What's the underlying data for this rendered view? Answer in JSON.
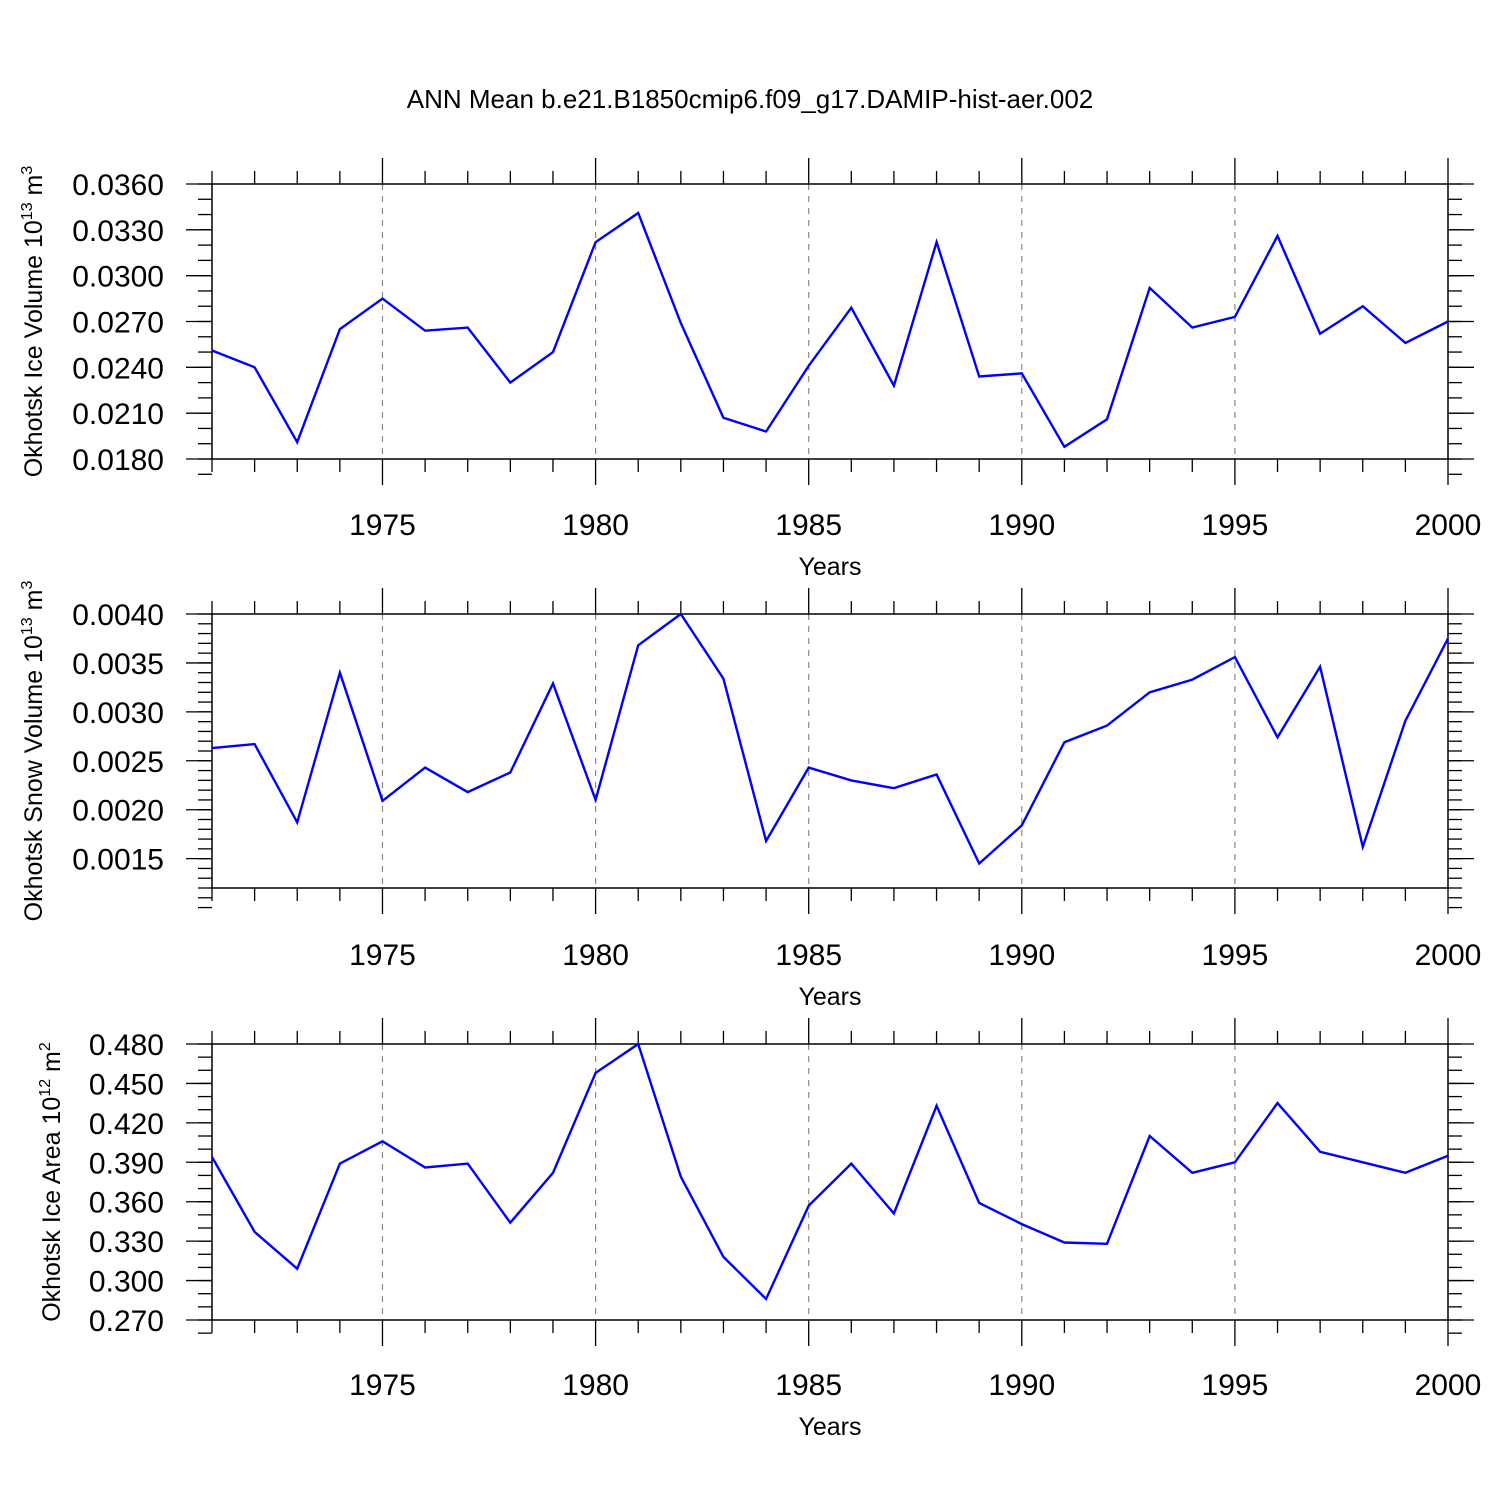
{
  "figure": {
    "title": "ANN Mean b.e21.B1850cmip6.f09_g17.DAMIP-hist-aer.002"
  },
  "chart_data": [
    {
      "type": "line",
      "title": "",
      "xlabel": "Years",
      "ylabel": {
        "text": "Okhotsk Ice Volume 10",
        "exp": "13",
        "unit": " m",
        "unit_exp": "3"
      },
      "xlim": [
        1971,
        2000
      ],
      "ylim": [
        0.018,
        0.036
      ],
      "x_ticks": [
        1975,
        1980,
        1985,
        1990,
        1995,
        2000
      ],
      "y_ticks": [
        "0.0180",
        "0.0210",
        "0.0240",
        "0.0270",
        "0.0300",
        "0.0330",
        "0.0360"
      ],
      "y_minor_step": 0.001,
      "grid": "x-major-dashed",
      "color": "#0000ff",
      "x": [
        1971,
        1972,
        1973,
        1974,
        1975,
        1976,
        1977,
        1978,
        1979,
        1980,
        1981,
        1982,
        1983,
        1984,
        1985,
        1986,
        1987,
        1988,
        1989,
        1990,
        1991,
        1992,
        1993,
        1994,
        1995,
        1996,
        1997,
        1998,
        1999,
        2000
      ],
      "values": [
        0.0251,
        0.024,
        0.0191,
        0.0265,
        0.0285,
        0.0264,
        0.0266,
        0.023,
        0.025,
        0.0322,
        0.0341,
        0.0269,
        0.0207,
        0.0198,
        0.0241,
        0.0279,
        0.0228,
        0.0322,
        0.0234,
        0.0236,
        0.0188,
        0.0206,
        0.0292,
        0.0266,
        0.0273,
        0.0326,
        0.0262,
        0.028,
        0.0256,
        0.027
      ]
    },
    {
      "type": "line",
      "title": "",
      "xlabel": "Years",
      "ylabel": {
        "text": "Okhotsk Snow Volume 10",
        "exp": "13",
        "unit": " m",
        "unit_exp": "3"
      },
      "xlim": [
        1971,
        2000
      ],
      "ylim": [
        0.0012,
        0.004
      ],
      "x_ticks": [
        1975,
        1980,
        1985,
        1990,
        1995,
        2000
      ],
      "y_ticks": [
        "0.0015",
        "0.0020",
        "0.0025",
        "0.0030",
        "0.0035",
        "0.0040"
      ],
      "y_minor_step": 0.0001,
      "grid": "x-major-dashed",
      "color": "#0000ff",
      "x": [
        1971,
        1972,
        1973,
        1974,
        1975,
        1976,
        1977,
        1978,
        1979,
        1980,
        1981,
        1982,
        1983,
        1984,
        1985,
        1986,
        1987,
        1988,
        1989,
        1990,
        1991,
        1992,
        1993,
        1994,
        1995,
        1996,
        1997,
        1998,
        1999,
        2000
      ],
      "values": [
        0.00263,
        0.00267,
        0.00187,
        0.0034,
        0.00209,
        0.00243,
        0.00218,
        0.00238,
        0.00329,
        0.0021,
        0.00368,
        0.004,
        0.00334,
        0.00168,
        0.00243,
        0.0023,
        0.00222,
        0.00236,
        0.00145,
        0.00184,
        0.00269,
        0.00286,
        0.0032,
        0.00333,
        0.00356,
        0.00274,
        0.00346,
        0.00162,
        0.00291,
        0.00375
      ]
    },
    {
      "type": "line",
      "title": "",
      "xlabel": "Years",
      "ylabel": {
        "text": "Okhotsk Ice Area 10",
        "exp": "12",
        "unit": " m",
        "unit_exp": "2"
      },
      "xlim": [
        1971,
        2000
      ],
      "ylim": [
        0.27,
        0.48
      ],
      "x_ticks": [
        1975,
        1980,
        1985,
        1990,
        1995,
        2000
      ],
      "y_ticks": [
        "0.270",
        "0.300",
        "0.330",
        "0.360",
        "0.390",
        "0.420",
        "0.450",
        "0.480"
      ],
      "y_minor_step": 0.01,
      "grid": "x-major-dashed",
      "color": "#0000ff",
      "x": [
        1971,
        1972,
        1973,
        1974,
        1975,
        1976,
        1977,
        1978,
        1979,
        1980,
        1981,
        1982,
        1983,
        1984,
        1985,
        1986,
        1987,
        1988,
        1989,
        1990,
        1991,
        1992,
        1993,
        1994,
        1995,
        1996,
        1997,
        1998,
        1999,
        2000
      ],
      "values": [
        0.394,
        0.337,
        0.309,
        0.389,
        0.406,
        0.386,
        0.389,
        0.344,
        0.382,
        0.458,
        0.48,
        0.379,
        0.318,
        0.286,
        0.357,
        0.389,
        0.351,
        0.433,
        0.359,
        0.343,
        0.329,
        0.328,
        0.41,
        0.382,
        0.39,
        0.435,
        0.398,
        0.39,
        0.382,
        0.395
      ]
    }
  ]
}
